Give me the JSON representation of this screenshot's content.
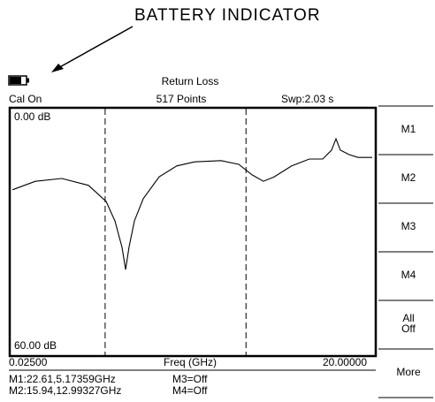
{
  "annotation": "BATTERY INDICATOR",
  "header": {
    "title": "Return Loss",
    "cal": "Cal On",
    "points": "517 Points",
    "sweep": "Swp:2.03 s"
  },
  "scale": {
    "top": {
      "value": 0,
      "label": "0.00 dB"
    },
    "bottom": {
      "value": 60,
      "label": "60.00 dB"
    },
    "start": {
      "value": 0.025,
      "label": "0.02500"
    },
    "stop": {
      "value": 20,
      "label": "20.00000"
    },
    "x_label": "Freq (GHz)"
  },
  "trace": {
    "x": [
      0.03,
      1.3,
      2.77,
      4.25,
      5.23,
      5.72,
      6.11,
      6.31,
      6.5,
      6.8,
      7.29,
      8.17,
      9.15,
      10.14,
      11.61,
      12.59,
      13.33,
      13.96,
      14.55,
      15.53,
      16.51,
      17.25,
      17.74,
      17.99,
      18.23,
      18.72,
      19.21,
      20.0
    ],
    "y": [
      19.6,
      17.5,
      16.8,
      18.5,
      22.5,
      27.3,
      33.8,
      39.3,
      33.8,
      27.3,
      21.8,
      16.4,
      13.7,
      12.7,
      12.4,
      13.3,
      15.9,
      17.5,
      16.4,
      13.7,
      12.0,
      12.0,
      9.8,
      7.0,
      9.8,
      10.9,
      11.6,
      11.6
    ]
  },
  "markers": [
    {
      "label": "M1:22.61,5.17359GHz",
      "freq": 5.17359,
      "db": 22.61
    },
    {
      "label": "M2:15.94,12.99327GHz",
      "freq": 12.99327,
      "db": 15.94
    }
  ],
  "marker_status": [
    "M3=Off",
    "M4=Off"
  ],
  "softkeys": [
    [
      "M1"
    ],
    [
      "M2"
    ],
    [
      "M3"
    ],
    [
      "M4"
    ],
    [
      "All",
      "Off"
    ],
    [
      "More"
    ]
  ]
}
